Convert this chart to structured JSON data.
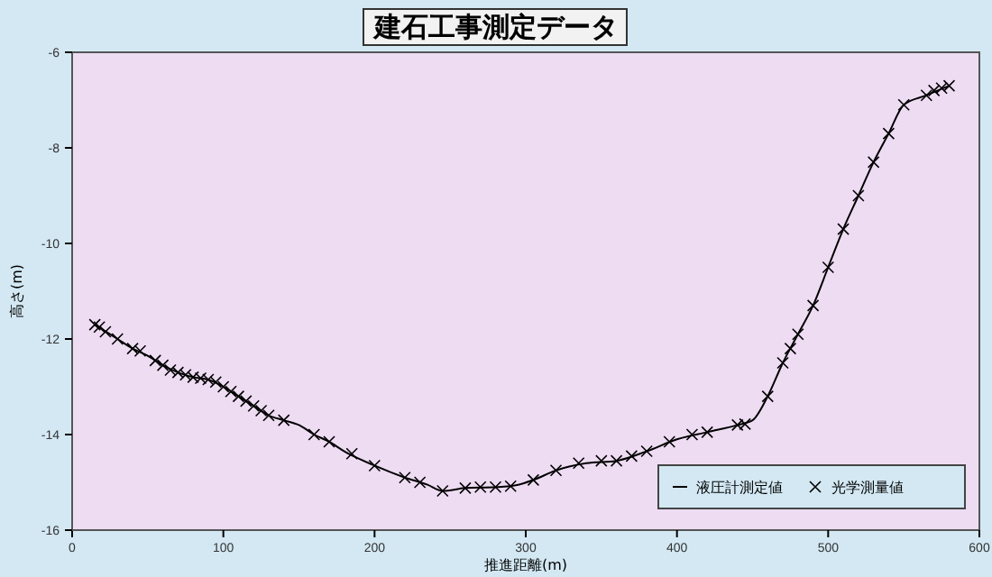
{
  "chart_data": {
    "type": "line",
    "title": "建石工事測定データ",
    "xlabel": "推進距離(m)",
    "ylabel": "高さ(m)",
    "xlim": [
      0,
      600
    ],
    "xticks": [
      0,
      100,
      200,
      300,
      400,
      500,
      600
    ],
    "ylim": [
      -16,
      -6
    ],
    "yticks": [
      -16,
      -14,
      -12,
      -10,
      -8,
      -6
    ],
    "legend": "bottom right",
    "grid": false,
    "series": [
      {
        "name": "液圧計測定値",
        "color": "#000000",
        "marker": "none",
        "x": [
          15,
          20,
          30,
          40,
          50,
          60,
          70,
          80,
          90,
          100,
          110,
          120,
          130,
          140,
          150,
          160,
          170,
          180,
          200,
          220,
          235,
          245,
          260,
          280,
          295,
          305,
          320,
          340,
          360,
          380,
          400,
          420,
          440,
          450,
          460,
          470,
          480,
          490,
          500,
          510,
          520,
          530,
          540,
          550,
          565,
          580
        ],
        "values": [
          -11.7,
          -11.8,
          -12.0,
          -12.2,
          -12.35,
          -12.55,
          -12.7,
          -12.8,
          -12.85,
          -13.0,
          -13.2,
          -13.4,
          -13.6,
          -13.7,
          -13.8,
          -14.0,
          -14.15,
          -14.35,
          -14.65,
          -14.9,
          -15.05,
          -15.18,
          -15.12,
          -15.1,
          -15.05,
          -14.95,
          -14.75,
          -14.6,
          -14.55,
          -14.35,
          -14.1,
          -13.95,
          -13.8,
          -13.7,
          -13.2,
          -12.5,
          -11.9,
          -11.3,
          -10.5,
          -9.7,
          -9.0,
          -8.3,
          -7.7,
          -7.1,
          -6.9,
          -6.7
        ]
      },
      {
        "name": "光学測量値",
        "type": "scatter",
        "color": "#000000",
        "marker": "cross",
        "x": [
          15,
          18,
          22,
          30,
          40,
          45,
          55,
          60,
          65,
          70,
          75,
          80,
          85,
          90,
          95,
          100,
          105,
          110,
          115,
          120,
          125,
          130,
          140,
          160,
          170,
          185,
          200,
          220,
          230,
          245,
          260,
          270,
          280,
          290,
          305,
          320,
          335,
          350,
          360,
          370,
          380,
          395,
          410,
          420,
          440,
          445,
          460,
          470,
          475,
          480,
          490,
          500,
          510,
          520,
          530,
          540,
          550,
          565,
          570,
          575,
          580
        ],
        "values": [
          -11.7,
          -11.75,
          -11.85,
          -12.0,
          -12.2,
          -12.25,
          -12.45,
          -12.55,
          -12.65,
          -12.7,
          -12.75,
          -12.8,
          -12.82,
          -12.85,
          -12.9,
          -13.0,
          -13.1,
          -13.2,
          -13.3,
          -13.4,
          -13.5,
          -13.6,
          -13.7,
          -14.0,
          -14.15,
          -14.4,
          -14.65,
          -14.9,
          -15.0,
          -15.18,
          -15.12,
          -15.1,
          -15.1,
          -15.08,
          -14.95,
          -14.75,
          -14.6,
          -14.55,
          -14.55,
          -14.45,
          -14.35,
          -14.15,
          -14.0,
          -13.95,
          -13.8,
          -13.78,
          -13.2,
          -12.5,
          -12.2,
          -11.9,
          -11.3,
          -10.5,
          -9.7,
          -9.0,
          -8.3,
          -7.7,
          -7.1,
          -6.9,
          -6.8,
          -6.75,
          -6.7
        ]
      }
    ]
  }
}
